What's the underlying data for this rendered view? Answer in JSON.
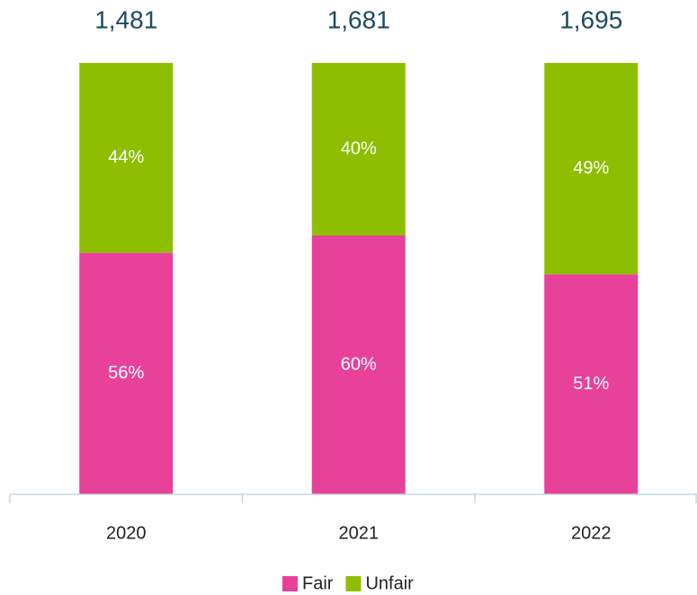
{
  "chart_data": {
    "type": "stacked_bar",
    "categories": [
      "2020",
      "2021",
      "2022"
    ],
    "annotations": [
      "1,481",
      "1,681",
      "1,695"
    ],
    "series": [
      {
        "name": "Fair",
        "color": "#e8419a",
        "values": [
          56,
          60,
          51
        ],
        "value_labels": [
          "56%",
          "60%",
          "51%"
        ]
      },
      {
        "name": "Unfair",
        "color": "#8dbf00",
        "values": [
          44,
          40,
          49
        ],
        "value_labels": [
          "44%",
          "40%",
          "49%"
        ]
      }
    ],
    "ylim": [
      0,
      100
    ],
    "grid": false,
    "legend": "bottom"
  }
}
